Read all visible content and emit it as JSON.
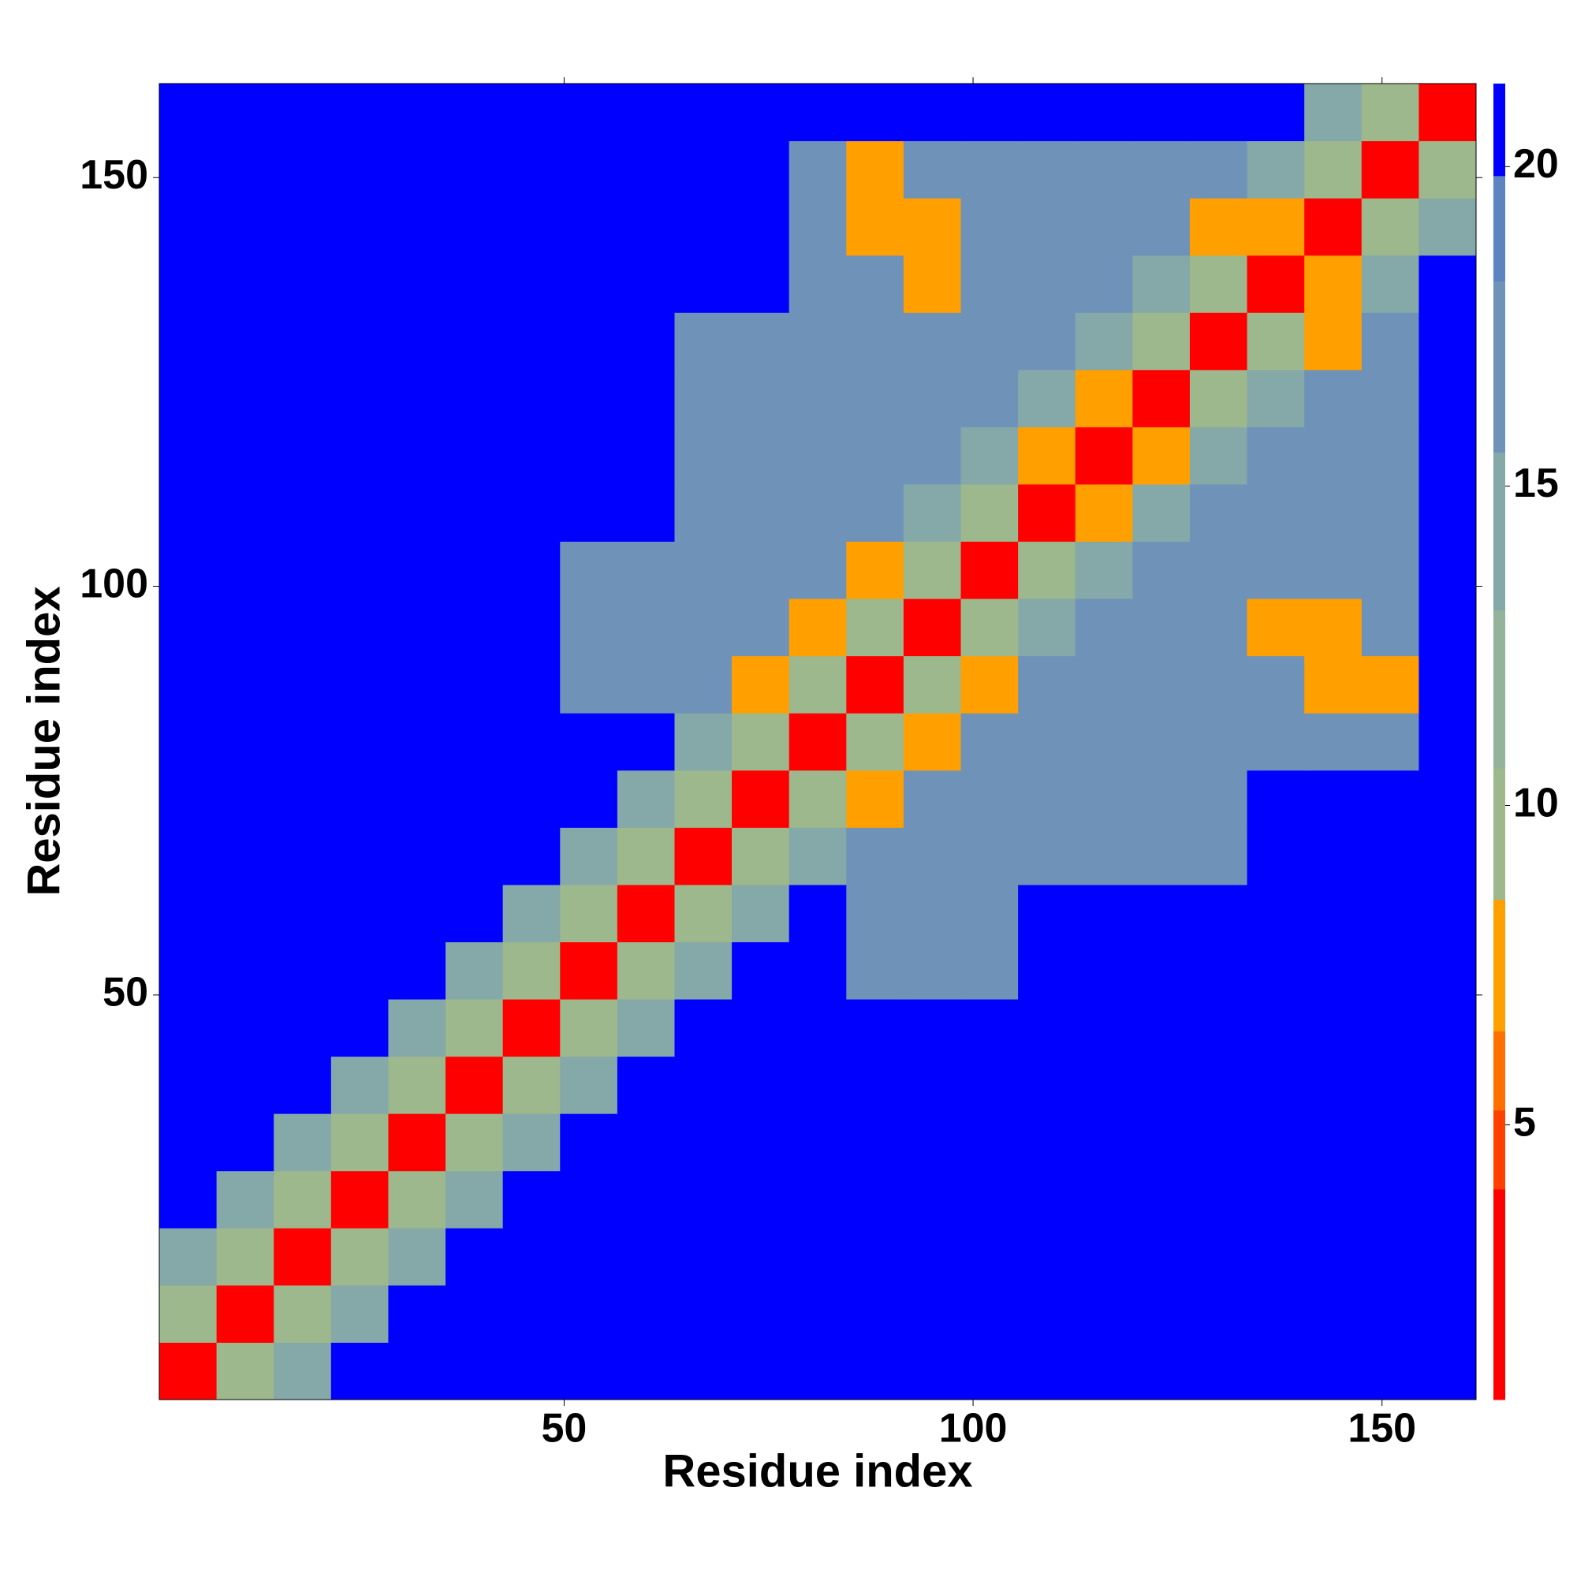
{
  "chart_data": {
    "type": "heatmap",
    "x_label": "Residue index",
    "y_label": "Residue index",
    "xbins": [
      0.5,
      7.5,
      14.5,
      21.5,
      28.5,
      35.5,
      42.5,
      49.5,
      56.5,
      63.5,
      70.5,
      77.5,
      84.5,
      91.5,
      98.5,
      105.5,
      112.5,
      119.5,
      126.5,
      133.5,
      140.5,
      147.5,
      154.5,
      161.5
    ],
    "ybins": [
      0.5,
      7.5,
      14.5,
      21.5,
      28.5,
      35.5,
      42.5,
      49.5,
      56.5,
      63.5,
      70.5,
      77.5,
      84.5,
      91.5,
      98.5,
      105.5,
      112.5,
      119.5,
      126.5,
      133.5,
      140.5,
      147.5,
      154.5,
      161.5
    ],
    "z": [
      [
        3,
        10,
        14,
        21,
        21,
        21,
        21,
        21,
        21,
        21,
        21,
        21,
        21,
        21,
        21,
        21,
        21,
        21,
        21,
        21,
        21,
        21,
        21
      ],
      [
        10,
        3,
        10,
        14,
        21,
        21,
        21,
        21,
        21,
        21,
        21,
        21,
        21,
        21,
        21,
        21,
        21,
        21,
        21,
        21,
        21,
        21,
        21
      ],
      [
        14,
        10,
        3,
        10,
        14,
        21,
        21,
        21,
        21,
        21,
        21,
        21,
        21,
        21,
        21,
        21,
        21,
        21,
        21,
        21,
        21,
        21,
        21
      ],
      [
        21,
        14,
        10,
        3,
        10,
        14,
        21,
        21,
        21,
        21,
        21,
        21,
        21,
        21,
        21,
        21,
        21,
        21,
        21,
        21,
        21,
        21,
        21
      ],
      [
        21,
        21,
        14,
        10,
        3,
        10,
        14,
        21,
        21,
        21,
        21,
        21,
        21,
        21,
        21,
        21,
        21,
        21,
        21,
        21,
        21,
        21,
        21
      ],
      [
        21,
        21,
        21,
        14,
        10,
        3,
        10,
        14,
        21,
        21,
        21,
        21,
        21,
        21,
        21,
        21,
        21,
        21,
        21,
        21,
        21,
        21,
        21
      ],
      [
        21,
        21,
        21,
        21,
        14,
        10,
        3,
        10,
        14,
        21,
        21,
        21,
        21,
        21,
        21,
        21,
        21,
        21,
        21,
        21,
        21,
        21,
        21
      ],
      [
        21,
        21,
        21,
        21,
        21,
        14,
        10,
        3,
        10,
        14,
        21,
        21,
        17,
        17,
        17,
        21,
        21,
        21,
        21,
        21,
        21,
        21,
        21
      ],
      [
        21,
        21,
        21,
        21,
        21,
        21,
        14,
        10,
        3,
        10,
        14,
        21,
        17,
        17,
        17,
        21,
        21,
        21,
        21,
        21,
        21,
        21,
        21
      ],
      [
        21,
        21,
        21,
        21,
        21,
        21,
        21,
        14,
        10,
        3,
        10,
        14,
        17,
        17,
        17,
        16,
        16,
        16,
        16,
        21,
        21,
        21,
        21
      ],
      [
        21,
        21,
        21,
        21,
        21,
        21,
        21,
        21,
        14,
        10,
        3,
        10,
        7,
        17,
        17,
        16,
        16,
        16,
        16,
        21,
        21,
        21,
        21
      ],
      [
        21,
        21,
        21,
        21,
        21,
        21,
        21,
        21,
        21,
        14,
        10,
        3,
        10,
        7,
        16,
        16,
        16,
        16,
        16,
        16,
        16,
        16,
        21
      ],
      [
        21,
        21,
        21,
        21,
        21,
        21,
        21,
        17,
        17,
        17,
        7,
        10,
        3,
        10,
        8,
        16,
        16,
        16,
        16,
        16,
        7,
        7,
        21
      ],
      [
        21,
        21,
        21,
        21,
        21,
        21,
        21,
        17,
        17,
        17,
        17,
        7,
        10,
        3,
        10,
        14,
        16,
        16,
        16,
        7,
        7,
        16,
        21
      ],
      [
        21,
        21,
        21,
        21,
        21,
        21,
        21,
        17,
        17,
        17,
        17,
        16,
        8,
        10,
        3,
        10,
        14,
        16,
        16,
        16,
        16,
        16,
        21
      ],
      [
        21,
        21,
        21,
        21,
        21,
        21,
        21,
        21,
        21,
        16,
        16,
        16,
        16,
        14,
        10,
        3,
        7,
        14,
        16,
        16,
        16,
        16,
        21
      ],
      [
        21,
        21,
        21,
        21,
        21,
        21,
        21,
        21,
        21,
        16,
        16,
        16,
        16,
        16,
        14,
        7,
        3,
        7,
        14,
        16,
        16,
        16,
        21
      ],
      [
        21,
        21,
        21,
        21,
        21,
        21,
        21,
        21,
        21,
        16,
        16,
        16,
        16,
        16,
        16,
        14,
        7,
        3,
        10,
        14,
        16,
        16,
        21
      ],
      [
        21,
        21,
        21,
        21,
        21,
        21,
        21,
        21,
        21,
        16,
        16,
        16,
        16,
        16,
        16,
        16,
        14,
        10,
        3,
        10,
        7,
        16,
        21
      ],
      [
        21,
        21,
        21,
        21,
        21,
        21,
        21,
        21,
        21,
        21,
        21,
        16,
        16,
        7,
        16,
        16,
        16,
        14,
        10,
        3,
        7,
        14,
        21
      ],
      [
        21,
        21,
        21,
        21,
        21,
        21,
        21,
        21,
        21,
        21,
        21,
        16,
        7,
        7,
        16,
        16,
        16,
        16,
        7,
        7,
        3,
        10,
        14
      ],
      [
        21,
        21,
        21,
        21,
        21,
        21,
        21,
        21,
        21,
        21,
        21,
        16,
        7,
        16,
        16,
        16,
        16,
        16,
        16,
        14,
        10,
        3,
        10
      ],
      [
        21,
        21,
        21,
        21,
        21,
        21,
        21,
        21,
        21,
        21,
        21,
        21,
        21,
        21,
        21,
        21,
        21,
        21,
        21,
        21,
        14,
        10,
        3
      ]
    ],
    "xlim": [
      0.5,
      161.5
    ],
    "ylim": [
      0.5,
      161.5
    ],
    "xticks": [
      50,
      100,
      150
    ],
    "yticks": [
      50,
      100,
      150
    ],
    "clim": [
      0.7,
      21.3
    ],
    "cticks": [
      5,
      10,
      15,
      20
    ]
  }
}
